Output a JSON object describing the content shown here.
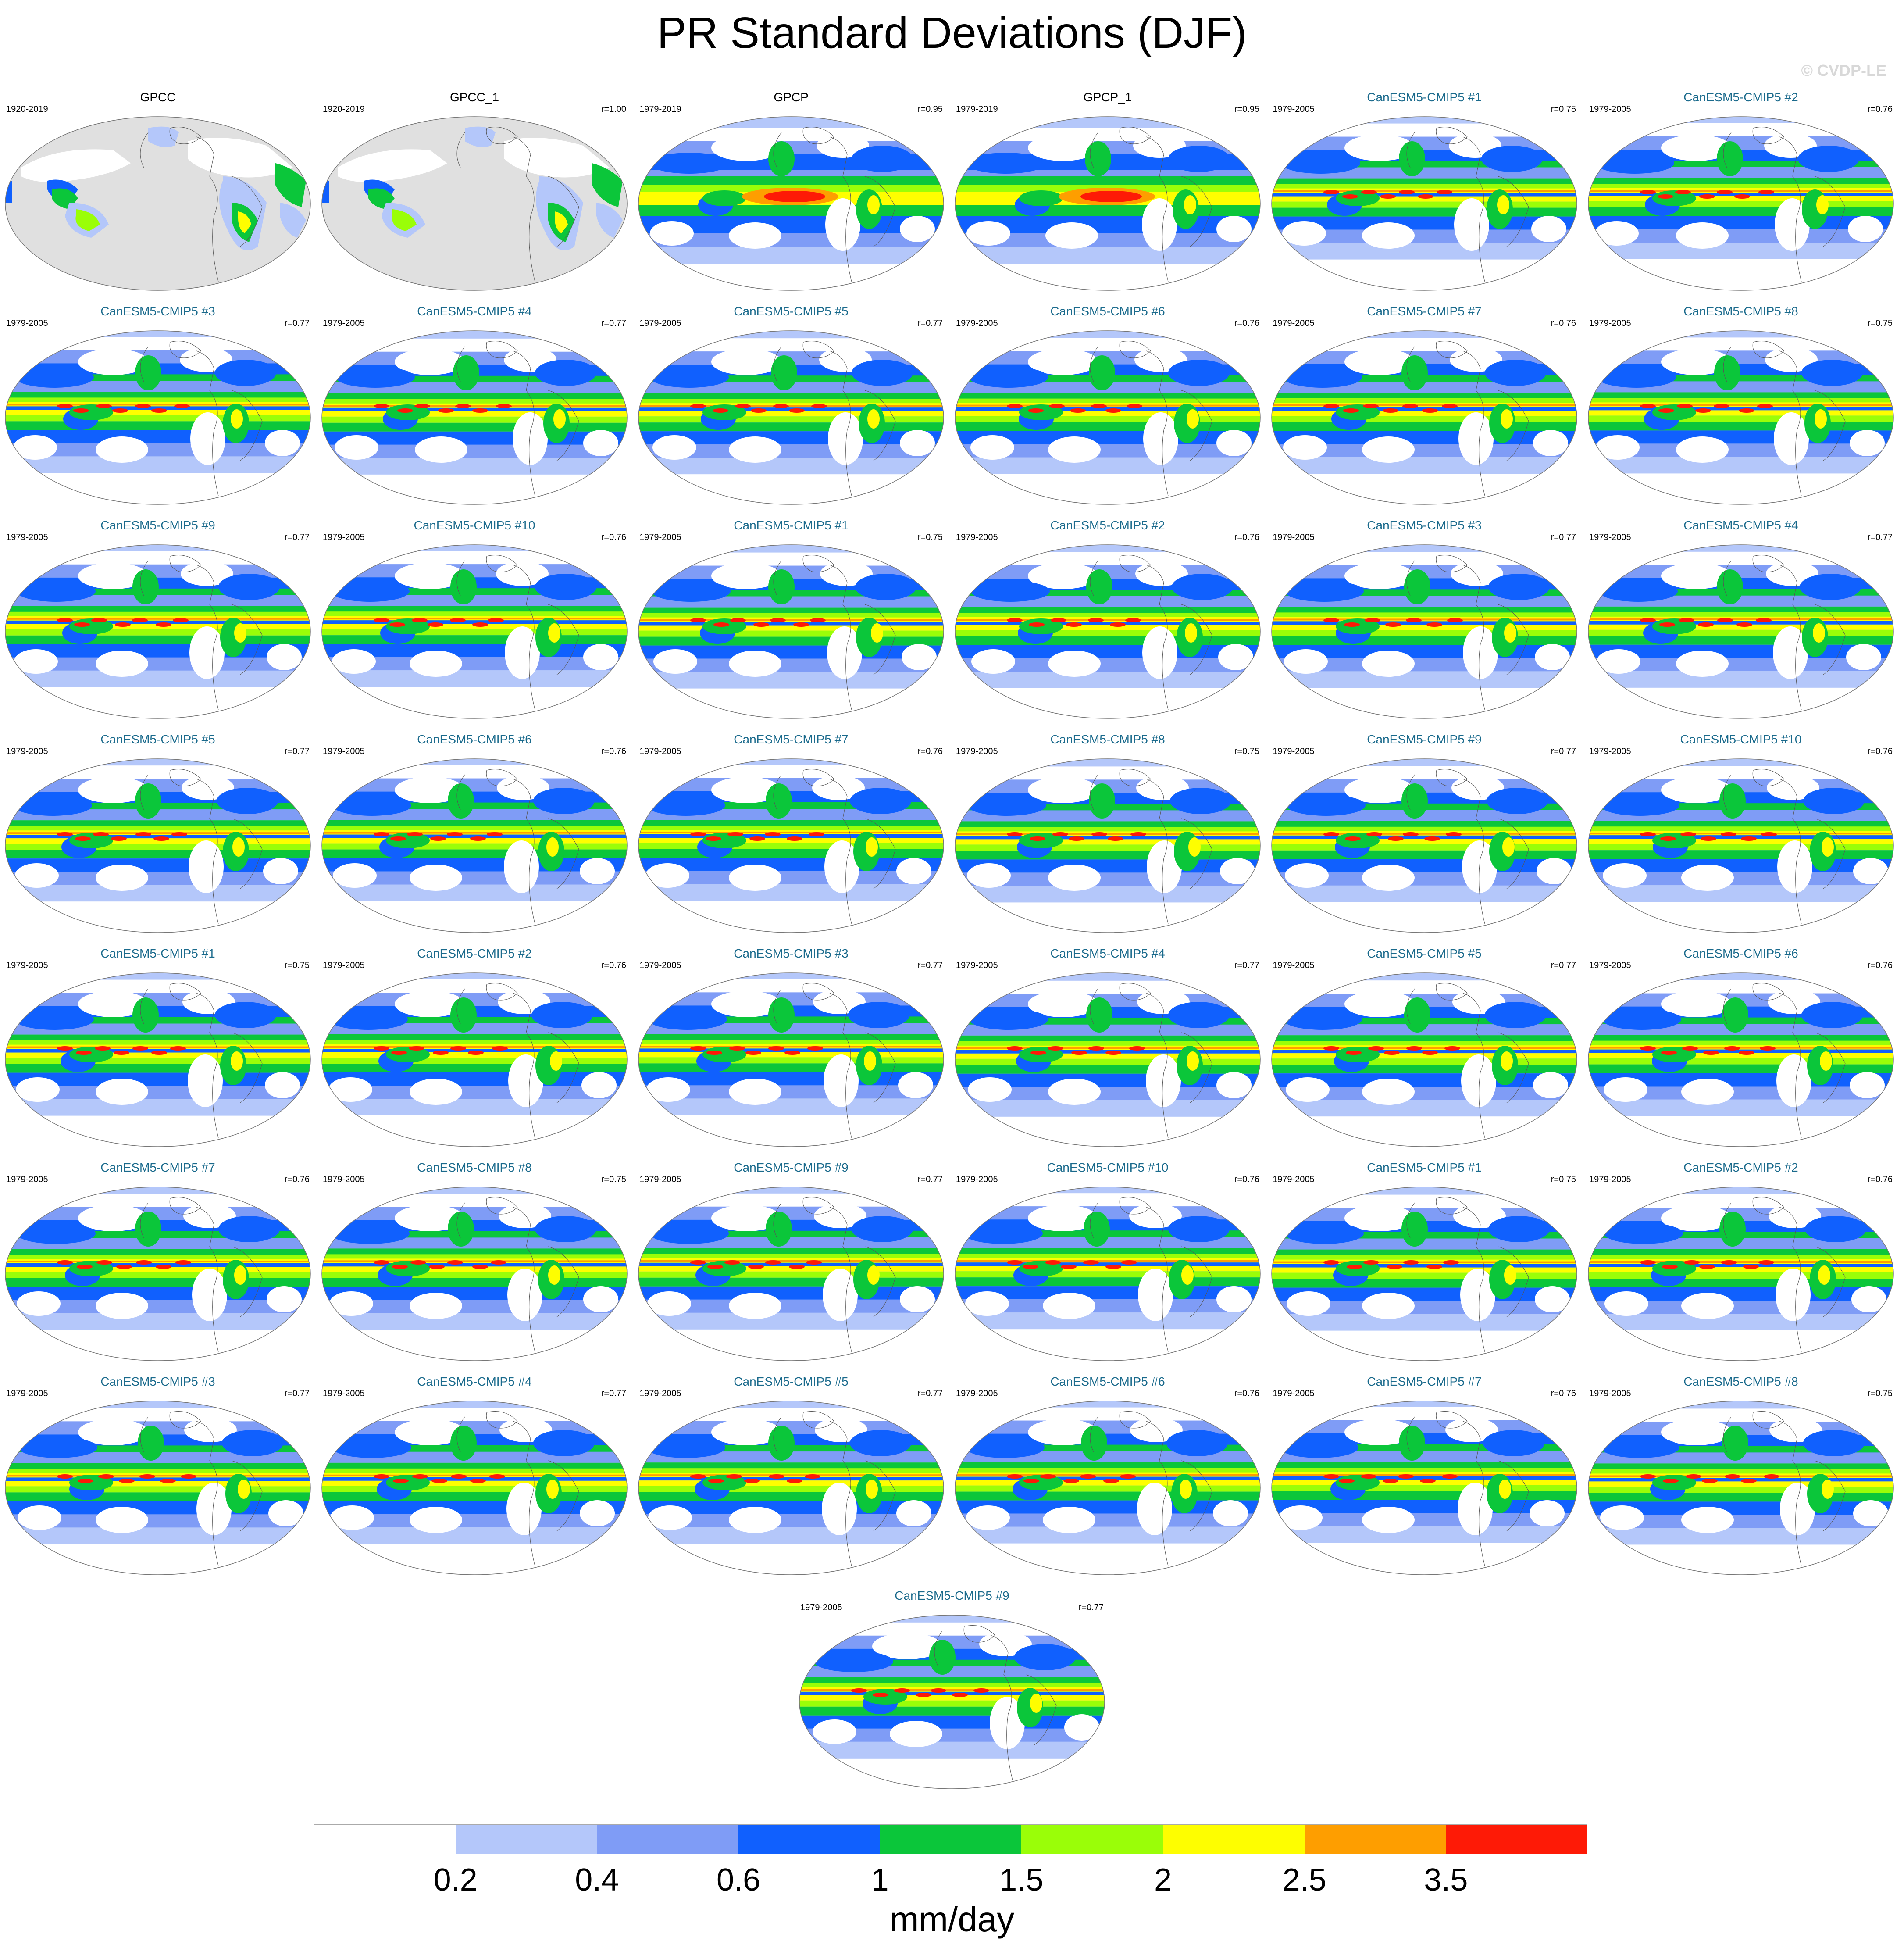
{
  "title": "PR Standard Deviations (DJF)",
  "credit": "© CVDP-LE",
  "panels": [
    {
      "title": "GPCC",
      "years": "1920-2019",
      "r": "",
      "kind": "obs-land"
    },
    {
      "title": "GPCC_1",
      "years": "1920-2019",
      "r": "r=1.00",
      "kind": "obs-land"
    },
    {
      "title": "GPCP",
      "years": "1979-2019",
      "r": "r=0.95",
      "kind": "obs-global"
    },
    {
      "title": "GPCP_1",
      "years": "1979-2019",
      "r": "r=0.95",
      "kind": "obs-global"
    },
    {
      "title": "CanESM5-CMIP5 #1",
      "years": "1979-2005",
      "r": "r=0.75",
      "kind": "model"
    },
    {
      "title": "CanESM5-CMIP5 #2",
      "years": "1979-2005",
      "r": "r=0.76",
      "kind": "model"
    },
    {
      "title": "CanESM5-CMIP5 #3",
      "years": "1979-2005",
      "r": "r=0.77",
      "kind": "model"
    },
    {
      "title": "CanESM5-CMIP5 #4",
      "years": "1979-2005",
      "r": "r=0.77",
      "kind": "model"
    },
    {
      "title": "CanESM5-CMIP5 #5",
      "years": "1979-2005",
      "r": "r=0.77",
      "kind": "model"
    },
    {
      "title": "CanESM5-CMIP5 #6",
      "years": "1979-2005",
      "r": "r=0.76",
      "kind": "model"
    },
    {
      "title": "CanESM5-CMIP5 #7",
      "years": "1979-2005",
      "r": "r=0.76",
      "kind": "model"
    },
    {
      "title": "CanESM5-CMIP5 #8",
      "years": "1979-2005",
      "r": "r=0.75",
      "kind": "model"
    },
    {
      "title": "CanESM5-CMIP5 #9",
      "years": "1979-2005",
      "r": "r=0.77",
      "kind": "model"
    },
    {
      "title": "CanESM5-CMIP5 #10",
      "years": "1979-2005",
      "r": "r=0.76",
      "kind": "model"
    },
    {
      "title": "CanESM5-CMIP5 #1",
      "years": "1979-2005",
      "r": "r=0.75",
      "kind": "model"
    },
    {
      "title": "CanESM5-CMIP5 #2",
      "years": "1979-2005",
      "r": "r=0.76",
      "kind": "model"
    },
    {
      "title": "CanESM5-CMIP5 #3",
      "years": "1979-2005",
      "r": "r=0.77",
      "kind": "model"
    },
    {
      "title": "CanESM5-CMIP5 #4",
      "years": "1979-2005",
      "r": "r=0.77",
      "kind": "model"
    },
    {
      "title": "CanESM5-CMIP5 #5",
      "years": "1979-2005",
      "r": "r=0.77",
      "kind": "model"
    },
    {
      "title": "CanESM5-CMIP5 #6",
      "years": "1979-2005",
      "r": "r=0.76",
      "kind": "model"
    },
    {
      "title": "CanESM5-CMIP5 #7",
      "years": "1979-2005",
      "r": "r=0.76",
      "kind": "model"
    },
    {
      "title": "CanESM5-CMIP5 #8",
      "years": "1979-2005",
      "r": "r=0.75",
      "kind": "model"
    },
    {
      "title": "CanESM5-CMIP5 #9",
      "years": "1979-2005",
      "r": "r=0.77",
      "kind": "model"
    },
    {
      "title": "CanESM5-CMIP5 #10",
      "years": "1979-2005",
      "r": "r=0.76",
      "kind": "model"
    },
    {
      "title": "CanESM5-CMIP5 #1",
      "years": "1979-2005",
      "r": "r=0.75",
      "kind": "model"
    },
    {
      "title": "CanESM5-CMIP5 #2",
      "years": "1979-2005",
      "r": "r=0.76",
      "kind": "model"
    },
    {
      "title": "CanESM5-CMIP5 #3",
      "years": "1979-2005",
      "r": "r=0.77",
      "kind": "model"
    },
    {
      "title": "CanESM5-CMIP5 #4",
      "years": "1979-2005",
      "r": "r=0.77",
      "kind": "model"
    },
    {
      "title": "CanESM5-CMIP5 #5",
      "years": "1979-2005",
      "r": "r=0.77",
      "kind": "model"
    },
    {
      "title": "CanESM5-CMIP5 #6",
      "years": "1979-2005",
      "r": "r=0.76",
      "kind": "model"
    },
    {
      "title": "CanESM5-CMIP5 #7",
      "years": "1979-2005",
      "r": "r=0.76",
      "kind": "model"
    },
    {
      "title": "CanESM5-CMIP5 #8",
      "years": "1979-2005",
      "r": "r=0.75",
      "kind": "model"
    },
    {
      "title": "CanESM5-CMIP5 #9",
      "years": "1979-2005",
      "r": "r=0.77",
      "kind": "model"
    },
    {
      "title": "CanESM5-CMIP5 #10",
      "years": "1979-2005",
      "r": "r=0.76",
      "kind": "model"
    },
    {
      "title": "CanESM5-CMIP5 #1",
      "years": "1979-2005",
      "r": "r=0.75",
      "kind": "model"
    },
    {
      "title": "CanESM5-CMIP5 #2",
      "years": "1979-2005",
      "r": "r=0.76",
      "kind": "model"
    },
    {
      "title": "CanESM5-CMIP5 #3",
      "years": "1979-2005",
      "r": "r=0.77",
      "kind": "model"
    },
    {
      "title": "CanESM5-CMIP5 #4",
      "years": "1979-2005",
      "r": "r=0.77",
      "kind": "model"
    },
    {
      "title": "CanESM5-CMIP5 #5",
      "years": "1979-2005",
      "r": "r=0.77",
      "kind": "model"
    },
    {
      "title": "CanESM5-CMIP5 #6",
      "years": "1979-2005",
      "r": "r=0.76",
      "kind": "model"
    },
    {
      "title": "CanESM5-CMIP5 #7",
      "years": "1979-2005",
      "r": "r=0.76",
      "kind": "model"
    },
    {
      "title": "CanESM5-CMIP5 #8",
      "years": "1979-2005",
      "r": "r=0.75",
      "kind": "model"
    },
    {
      "title": "CanESM5-CMIP5 #9",
      "years": "1979-2005",
      "r": "r=0.77",
      "kind": "model"
    }
  ],
  "colorbar": {
    "colors": [
      "#ffffff",
      "#b4c7fa",
      "#7f9cf6",
      "#1060fe",
      "#0bc63a",
      "#9afe08",
      "#fefe00",
      "#fe9e00",
      "#fe1a06"
    ],
    "labels": [
      "0.2",
      "0.4",
      "0.6",
      "1",
      "1.5",
      "2",
      "2.5",
      "3.5"
    ],
    "units": "mm/day"
  }
}
